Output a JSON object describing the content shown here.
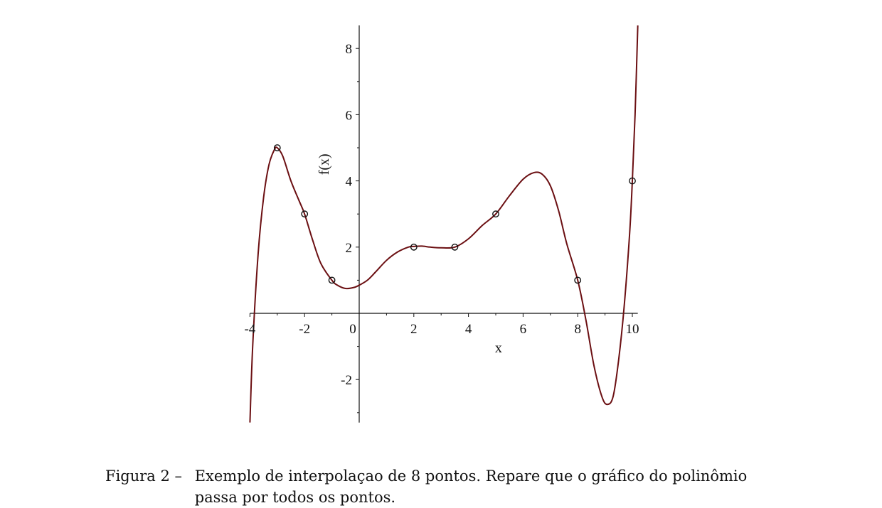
{
  "chart_data": {
    "type": "line",
    "title": "",
    "xlabel": "x",
    "ylabel": "f(x)",
    "xlim": [
      -4,
      10.2
    ],
    "ylim": [
      -3.3,
      8.7
    ],
    "x_ticks": [
      -4,
      -2,
      0,
      2,
      4,
      6,
      8,
      10
    ],
    "x_tick_labels": [
      "-4",
      "-2",
      "0",
      "2",
      "4",
      "6",
      "8",
      "10"
    ],
    "y_ticks": [
      -2,
      2,
      4,
      6,
      8
    ],
    "y_tick_labels": [
      "-2",
      "2",
      "4",
      "6",
      "8"
    ],
    "grid": false,
    "line_color": "#6b0f12",
    "series": [
      {
        "type": "line",
        "x": [
          -4.0,
          -3.9,
          -3.7,
          -3.5,
          -3.3,
          -3.1,
          -3.0,
          -2.8,
          -2.5,
          -2.2,
          -2.0,
          -1.7,
          -1.4,
          -1.0,
          -0.8,
          -0.5,
          -0.2,
          0.0,
          0.3,
          0.6,
          1.0,
          1.4,
          1.8,
          2.0,
          2.3,
          2.6,
          3.0,
          3.5,
          4.0,
          4.5,
          5.0,
          5.5,
          6.0,
          6.4,
          6.7,
          7.0,
          7.3,
          7.6,
          8.0,
          8.3,
          8.6,
          8.9,
          9.1,
          9.3,
          9.5,
          9.7,
          9.9,
          10.0,
          10.1,
          10.2
        ],
        "y": [
          -3.3,
          -1.0,
          1.8,
          3.5,
          4.5,
          4.95,
          5.0,
          4.75,
          4.0,
          3.4,
          3.0,
          2.2,
          1.5,
          1.0,
          0.85,
          0.75,
          0.78,
          0.85,
          1.0,
          1.25,
          1.6,
          1.85,
          2.0,
          2.02,
          2.03,
          2.0,
          1.98,
          2.0,
          2.25,
          2.65,
          3.0,
          3.55,
          4.05,
          4.25,
          4.2,
          3.85,
          3.1,
          2.1,
          1.0,
          -0.2,
          -1.6,
          -2.55,
          -2.75,
          -2.5,
          -1.4,
          0.2,
          2.4,
          4.0,
          6.0,
          8.7
        ]
      },
      {
        "type": "scatter",
        "name": "",
        "x": [
          -3,
          -2,
          -1,
          2,
          3.5,
          5,
          8,
          10
        ],
        "y": [
          5,
          3,
          1,
          2,
          2,
          3,
          1,
          4
        ]
      }
    ]
  },
  "caption": {
    "lead": "Figura 2 –",
    "body": "Exemplo de interpolaçao de 8 pontos. Repare que o gráfico do polinômio passa por todos os pontos."
  }
}
